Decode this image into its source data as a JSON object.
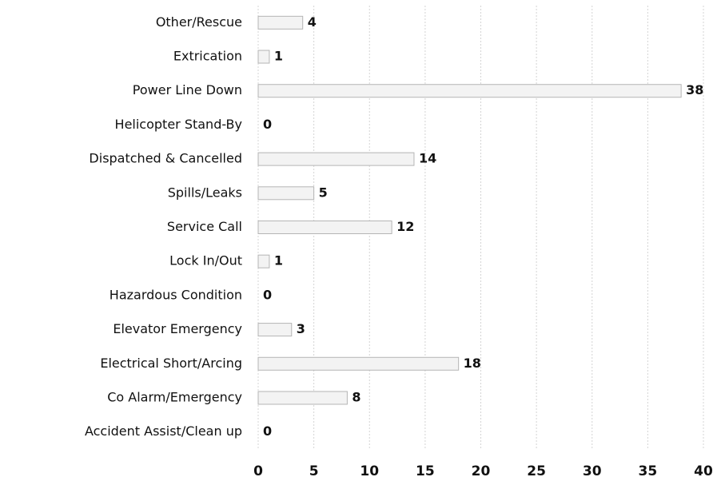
{
  "chart_data": {
    "type": "barh",
    "categories": [
      "Other/Rescue",
      "Extrication",
      "Power Line Down",
      "Helicopter Stand-By",
      "Dispatched & Cancelled",
      "Spills/Leaks",
      "Service Call",
      "Lock In/Out",
      "Hazardous Condition",
      "Elevator Emergency",
      "Electrical Short/Arcing",
      "Co Alarm/Emergency",
      "Accident Assist/Clean up"
    ],
    "values": [
      4,
      1,
      38,
      0,
      14,
      5,
      12,
      1,
      0,
      3,
      18,
      8,
      0
    ],
    "color": "#f3f3f3",
    "xlim": [
      0,
      40
    ],
    "xticks": [
      0,
      5,
      10,
      15,
      20,
      25,
      30,
      35,
      40
    ],
    "grid": true
  }
}
